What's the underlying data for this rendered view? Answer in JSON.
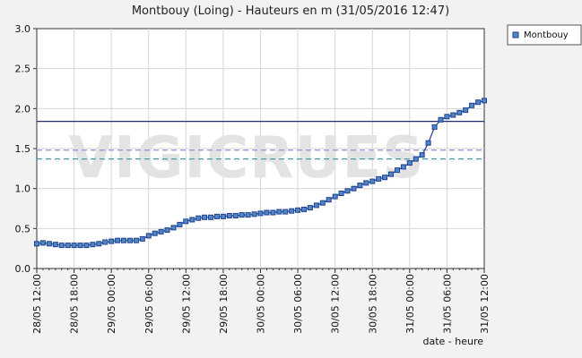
{
  "chart_data": {
    "type": "line",
    "title": "Montbouy (Loing) - Hauteurs en m (31/05/2016 12:47)",
    "xlabel": "date - heure",
    "ylabel": "",
    "watermark": "VIGICRUES",
    "ylim": [
      0,
      3.0
    ],
    "yticks": [
      "0.0",
      "0.5",
      "1.0",
      "1.5",
      "2.0",
      "2.5",
      "3.0"
    ],
    "xticks": [
      "28/05 12:00",
      "28/05 18:00",
      "29/05 00:00",
      "29/05 06:00",
      "29/05 12:00",
      "29/05 18:00",
      "30/05 00:00",
      "30/05 06:00",
      "30/05 12:00",
      "30/05 18:00",
      "31/05 00:00",
      "31/05 06:00",
      "31/05 12:00"
    ],
    "xrange": [
      "28/05 12:00",
      "31/05 12:00"
    ],
    "grid": true,
    "legend": {
      "position": "top-right"
    },
    "series": [
      {
        "name": "Montbouy",
        "color": "#1f3f8f",
        "marker_color": "#4f87c7",
        "x": [
          "28/05 12:00",
          "28/05 13:00",
          "28/05 14:00",
          "28/05 15:00",
          "28/05 16:00",
          "28/05 17:00",
          "28/05 18:00",
          "28/05 19:00",
          "28/05 20:00",
          "28/05 21:00",
          "28/05 22:00",
          "28/05 23:00",
          "29/05 00:00",
          "29/05 01:00",
          "29/05 02:00",
          "29/05 03:00",
          "29/05 04:00",
          "29/05 05:00",
          "29/05 06:00",
          "29/05 07:00",
          "29/05 08:00",
          "29/05 09:00",
          "29/05 10:00",
          "29/05 11:00",
          "29/05 12:00",
          "29/05 13:00",
          "29/05 14:00",
          "29/05 15:00",
          "29/05 16:00",
          "29/05 17:00",
          "29/05 18:00",
          "29/05 19:00",
          "29/05 20:00",
          "29/05 21:00",
          "29/05 22:00",
          "29/05 23:00",
          "30/05 00:00",
          "30/05 01:00",
          "30/05 02:00",
          "30/05 03:00",
          "30/05 04:00",
          "30/05 05:00",
          "30/05 06:00",
          "30/05 07:00",
          "30/05 08:00",
          "30/05 09:00",
          "30/05 10:00",
          "30/05 11:00",
          "30/05 12:00",
          "30/05 13:00",
          "30/05 14:00",
          "30/05 15:00",
          "30/05 16:00",
          "30/05 17:00",
          "30/05 18:00",
          "30/05 19:00",
          "30/05 20:00",
          "30/05 21:00",
          "30/05 22:00",
          "30/05 23:00",
          "31/05 00:00",
          "31/05 01:00",
          "31/05 02:00",
          "31/05 03:00",
          "31/05 04:00",
          "31/05 05:00",
          "31/05 06:00",
          "31/05 07:00",
          "31/05 08:00",
          "31/05 09:00",
          "31/05 10:00",
          "31/05 11:00",
          "31/05 12:00"
        ],
        "values": [
          0.31,
          0.32,
          0.31,
          0.3,
          0.29,
          0.29,
          0.29,
          0.29,
          0.29,
          0.3,
          0.31,
          0.33,
          0.34,
          0.35,
          0.35,
          0.35,
          0.35,
          0.37,
          0.41,
          0.44,
          0.46,
          0.48,
          0.51,
          0.55,
          0.59,
          0.61,
          0.63,
          0.64,
          0.64,
          0.65,
          0.65,
          0.66,
          0.66,
          0.67,
          0.67,
          0.68,
          0.69,
          0.7,
          0.7,
          0.71,
          0.71,
          0.72,
          0.73,
          0.74,
          0.76,
          0.79,
          0.82,
          0.86,
          0.9,
          0.94,
          0.97,
          1.0,
          1.04,
          1.07,
          1.09,
          1.12,
          1.14,
          1.18,
          1.23,
          1.27,
          1.32,
          1.37,
          1.42,
          1.57,
          1.77,
          1.86,
          1.9,
          1.92,
          1.95,
          1.98,
          2.04,
          2.08,
          2.1
        ]
      }
    ],
    "reference_lines": [
      {
        "value": 1.84,
        "color": "#1f2f7a",
        "style": "solid"
      },
      {
        "value": 1.48,
        "color": "#9a8ad8",
        "style": "dashed"
      },
      {
        "value": 1.37,
        "color": "#3aa0b0",
        "style": "dashed"
      }
    ]
  }
}
